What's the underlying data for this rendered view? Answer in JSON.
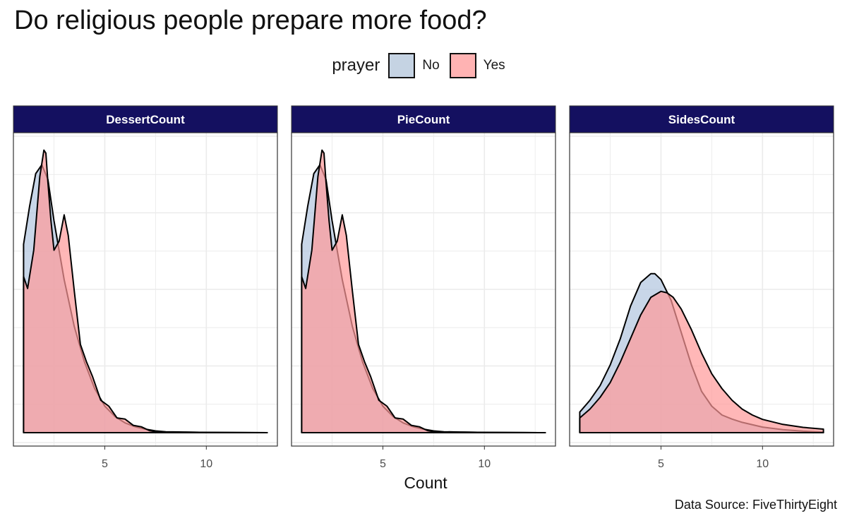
{
  "chart_data": {
    "type": "area",
    "subtype": "density",
    "title": "Do religious people prepare more food?",
    "caption": "Data Source: FiveThirtyEight",
    "xlabel": "Count",
    "ylabel": "",
    "legend": {
      "title": "prayer",
      "position": "top"
    },
    "colors": {
      "No": "#b0c4de",
      "Yes": "#ff9999",
      "strip_bg": "#141060",
      "grid": "#ebebeb",
      "outline": "#000000"
    },
    "fill_opacity": 0.7,
    "grid": true,
    "xlim": [
      0.5,
      13.5
    ],
    "ylim": [
      0,
      1
    ],
    "x_ticks": [
      5,
      10
    ],
    "series_names": [
      "No",
      "Yes"
    ],
    "panels": [
      {
        "name": "DessertCount",
        "series": [
          {
            "name": "No",
            "x": [
              1.0,
              1.3,
              1.6,
              1.9,
              2.2,
              2.5,
              3.0,
              3.5,
              4.0,
              4.5,
              5.0,
              5.5,
              6.0,
              6.5,
              7.0,
              7.5,
              8.0,
              9.0,
              10.0,
              11.0,
              12.0,
              13.0
            ],
            "y": [
              0.64,
              0.77,
              0.88,
              0.91,
              0.86,
              0.72,
              0.52,
              0.36,
              0.24,
              0.15,
              0.09,
              0.055,
              0.033,
              0.02,
              0.012,
              0.006,
              0.003,
              0.002,
              0.001,
              0.0005,
              0.0002,
              0.0
            ]
          },
          {
            "name": "Yes",
            "x": [
              1.0,
              1.2,
              1.5,
              1.8,
              2.0,
              2.1,
              2.2,
              2.35,
              2.5,
              2.75,
              3.0,
              3.2,
              3.5,
              3.8,
              4.1,
              4.4,
              4.8,
              5.2,
              5.6,
              6.0,
              6.4,
              6.8,
              7.2,
              7.6,
              8.0,
              9.0,
              10.0,
              11.0,
              12.0,
              13.0
            ],
            "y": [
              0.53,
              0.49,
              0.62,
              0.87,
              0.96,
              0.95,
              0.85,
              0.72,
              0.62,
              0.65,
              0.74,
              0.67,
              0.48,
              0.3,
              0.24,
              0.19,
              0.11,
              0.09,
              0.05,
              0.046,
              0.025,
              0.02,
              0.007,
              0.002,
              0.001,
              0.002,
              0.001,
              0.0005,
              0.0002,
              0.0
            ]
          }
        ]
      },
      {
        "name": "PieCount",
        "series": [
          {
            "name": "No",
            "x": [
              1.0,
              1.3,
              1.6,
              1.9,
              2.2,
              2.5,
              3.0,
              3.5,
              4.0,
              4.5,
              5.0,
              5.5,
              6.0,
              6.5,
              7.0,
              7.5,
              8.0,
              9.0,
              10.0,
              11.0,
              12.0,
              13.0
            ],
            "y": [
              0.64,
              0.77,
              0.88,
              0.91,
              0.86,
              0.72,
              0.52,
              0.36,
              0.24,
              0.15,
              0.09,
              0.055,
              0.033,
              0.02,
              0.012,
              0.006,
              0.003,
              0.002,
              0.001,
              0.0005,
              0.0002,
              0.0
            ]
          },
          {
            "name": "Yes",
            "x": [
              1.0,
              1.2,
              1.5,
              1.8,
              2.0,
              2.1,
              2.2,
              2.35,
              2.5,
              2.75,
              3.0,
              3.2,
              3.5,
              3.8,
              4.1,
              4.4,
              4.8,
              5.2,
              5.6,
              6.0,
              6.4,
              6.8,
              7.2,
              7.6,
              8.0,
              9.0,
              10.0,
              11.0,
              12.0,
              13.0
            ],
            "y": [
              0.53,
              0.49,
              0.62,
              0.87,
              0.96,
              0.95,
              0.85,
              0.72,
              0.62,
              0.65,
              0.74,
              0.67,
              0.48,
              0.3,
              0.24,
              0.19,
              0.11,
              0.09,
              0.05,
              0.046,
              0.025,
              0.02,
              0.007,
              0.002,
              0.001,
              0.002,
              0.001,
              0.0005,
              0.0002,
              0.0
            ]
          }
        ]
      },
      {
        "name": "SidesCount",
        "series": [
          {
            "name": "No",
            "x": [
              1.0,
              1.5,
              2.0,
              2.5,
              3.0,
              3.5,
              4.0,
              4.5,
              4.7,
              5.0,
              5.5,
              6.0,
              6.5,
              7.0,
              7.5,
              8.0,
              8.5,
              9.0,
              10.0,
              11.0,
              12.0,
              13.0
            ],
            "y": [
              0.07,
              0.11,
              0.16,
              0.23,
              0.32,
              0.43,
              0.51,
              0.54,
              0.54,
              0.52,
              0.45,
              0.34,
              0.23,
              0.14,
              0.09,
              0.06,
              0.046,
              0.035,
              0.019,
              0.01,
              0.005,
              0.002
            ]
          },
          {
            "name": "Yes",
            "x": [
              1.0,
              1.5,
              2.0,
              2.5,
              3.0,
              3.5,
              4.0,
              4.5,
              5.0,
              5.3,
              5.6,
              6.0,
              6.5,
              7.0,
              7.5,
              8.0,
              8.5,
              9.0,
              9.5,
              10.0,
              11.0,
              12.0,
              13.0
            ],
            "y": [
              0.05,
              0.08,
              0.12,
              0.17,
              0.24,
              0.32,
              0.4,
              0.46,
              0.48,
              0.475,
              0.46,
              0.42,
              0.35,
              0.27,
              0.2,
              0.15,
              0.11,
              0.08,
              0.06,
              0.045,
              0.028,
              0.018,
              0.012
            ]
          }
        ]
      }
    ]
  }
}
